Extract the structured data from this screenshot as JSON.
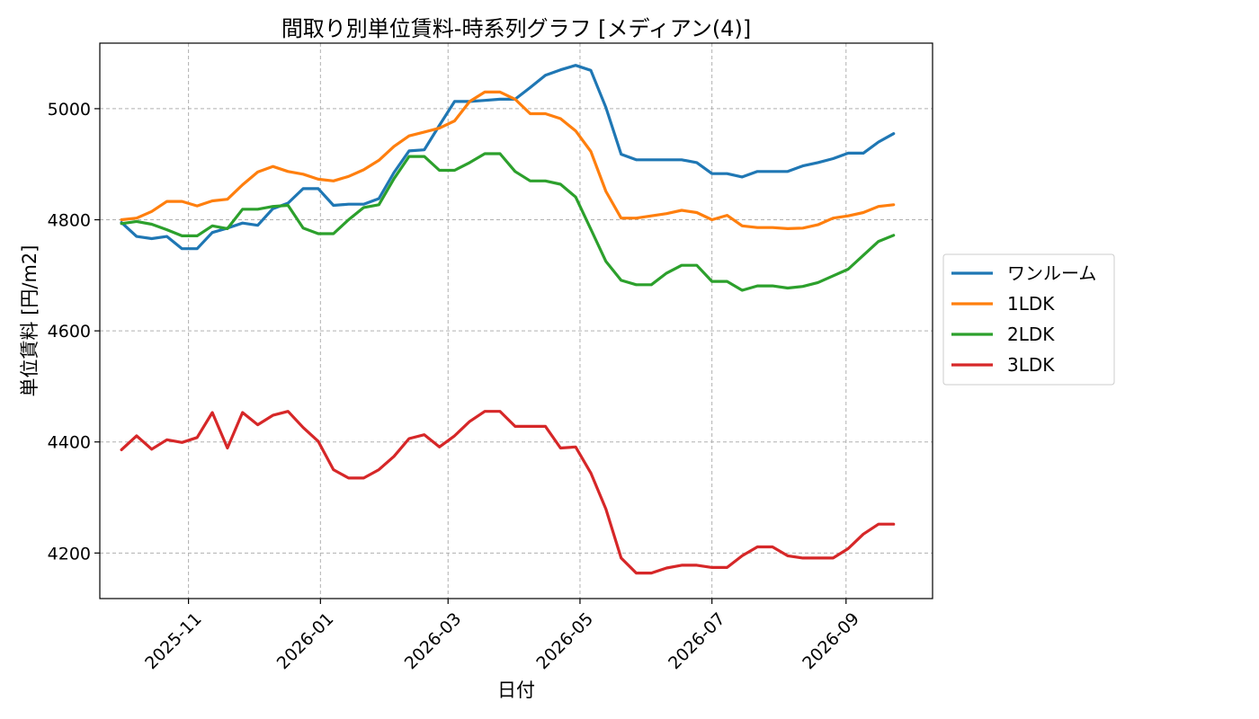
{
  "chart_data": {
    "type": "line",
    "title": "間取り別単位賃料-時系列グラフ [メディアン(4)]",
    "xlabel": "日付",
    "ylabel": "単位賃料 [円/m2]",
    "ylim": [
      4118,
      5118
    ],
    "yticks": [
      4200,
      4400,
      4600,
      4800,
      5000
    ],
    "xlim": [
      "2025-09-21",
      "2026-10-11"
    ],
    "xticks": [
      "2025-11-01",
      "2026-01-01",
      "2026-03-01",
      "2026-05-01",
      "2026-07-01",
      "2026-09-01"
    ],
    "xtick_labels": [
      "2025-11",
      "2026-01",
      "2026-03",
      "2026-05",
      "2026-07",
      "2026-09"
    ],
    "grid": true,
    "legend_position": "center-right",
    "x": [
      "2025-10-01",
      "2025-10-08",
      "2025-10-15",
      "2025-10-22",
      "2025-10-29",
      "2025-11-05",
      "2025-11-12",
      "2025-11-19",
      "2025-11-26",
      "2025-12-03",
      "2025-12-10",
      "2025-12-17",
      "2025-12-24",
      "2025-12-31",
      "2026-01-07",
      "2026-01-14",
      "2026-01-21",
      "2026-01-28",
      "2026-02-04",
      "2026-02-11",
      "2026-02-18",
      "2026-02-25",
      "2026-03-04",
      "2026-03-11",
      "2026-03-18",
      "2026-03-25",
      "2026-04-01",
      "2026-04-08",
      "2026-04-15",
      "2026-04-22",
      "2026-04-29",
      "2026-05-06",
      "2026-05-13",
      "2026-05-20",
      "2026-05-27",
      "2026-06-03",
      "2026-06-10",
      "2026-06-17",
      "2026-06-24",
      "2026-07-01",
      "2026-07-08",
      "2026-07-15",
      "2026-07-22",
      "2026-07-29",
      "2026-08-05",
      "2026-08-12",
      "2026-08-19",
      "2026-08-26",
      "2026-09-02",
      "2026-09-09",
      "2026-09-16",
      "2026-09-23"
    ],
    "series": [
      {
        "name": "ワンルーム",
        "color": "#1f77b4",
        "values": [
          4795,
          4770,
          4766,
          4770,
          4748,
          4748,
          4777,
          4785,
          4794,
          4790,
          4820,
          4830,
          4856,
          4856,
          4826,
          4828,
          4828,
          4838,
          4885,
          4924,
          4926,
          4970,
          5013,
          5013,
          5015,
          5017,
          5017,
          5038,
          5060,
          5070,
          5078,
          5069,
          5002,
          4918,
          4908,
          4908,
          4908,
          4908,
          4903,
          4883,
          4883,
          4877,
          4887,
          4887,
          4887,
          4897,
          4903,
          4910,
          4920,
          4920,
          4940,
          4955
        ]
      },
      {
        "name": "1LDK",
        "color": "#ff7f0e",
        "values": [
          4800,
          4803,
          4815,
          4833,
          4833,
          4825,
          4834,
          4837,
          4863,
          4886,
          4896,
          4887,
          4882,
          4873,
          4870,
          4878,
          4890,
          4907,
          4932,
          4951,
          4958,
          4965,
          4978,
          5013,
          5030,
          5030,
          5017,
          4991,
          4991,
          4982,
          4960,
          4923,
          4851,
          4803,
          4803,
          4807,
          4811,
          4817,
          4813,
          4800,
          4808,
          4789,
          4786,
          4786,
          4784,
          4785,
          4791,
          4803,
          4807,
          4813,
          4824,
          4827
        ]
      },
      {
        "name": "2LDK",
        "color": "#2ca02c",
        "values": [
          4793,
          4797,
          4792,
          4782,
          4771,
          4771,
          4789,
          4784,
          4819,
          4819,
          4824,
          4826,
          4785,
          4775,
          4775,
          4800,
          4822,
          4827,
          4874,
          4914,
          4914,
          4889,
          4889,
          4903,
          4919,
          4919,
          4887,
          4870,
          4870,
          4864,
          4841,
          4783,
          4725,
          4691,
          4683,
          4683,
          4704,
          4718,
          4718,
          4689,
          4689,
          4673,
          4681,
          4681,
          4677,
          4680,
          4687,
          4699,
          4711,
          4736,
          4761,
          4772
        ]
      },
      {
        "name": "3LDK",
        "color": "#d62728",
        "values": [
          4386,
          4411,
          4387,
          4404,
          4399,
          4408,
          4453,
          4389,
          4453,
          4431,
          4448,
          4455,
          4426,
          4401,
          4350,
          4335,
          4335,
          4350,
          4374,
          4406,
          4413,
          4391,
          4411,
          4437,
          4455,
          4455,
          4428,
          4428,
          4428,
          4389,
          4391,
          4344,
          4279,
          4191,
          4164,
          4164,
          4173,
          4178,
          4178,
          4174,
          4174,
          4195,
          4211,
          4211,
          4195,
          4191,
          4191,
          4191,
          4208,
          4234,
          4252,
          4252
        ]
      }
    ]
  }
}
